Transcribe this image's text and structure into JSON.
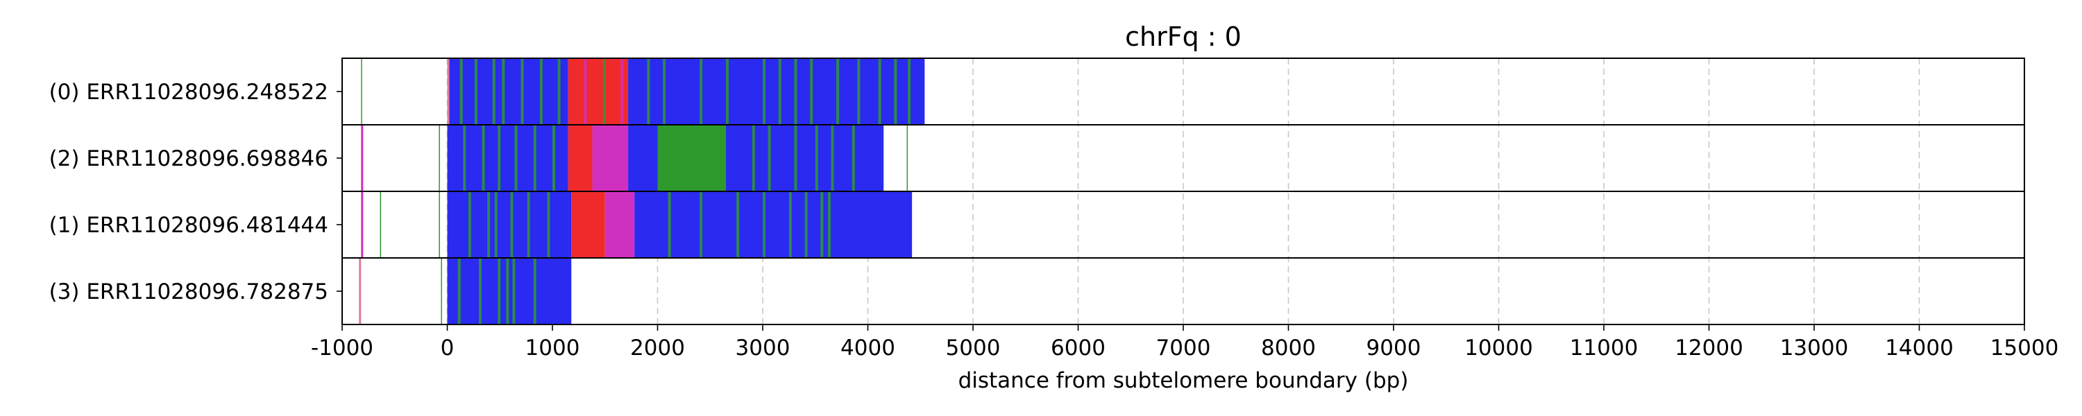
{
  "chart_data": {
    "type": "bar",
    "orientation": "horizontal-tracks",
    "title": "chrFq : 0",
    "xlabel": "distance from subtelomere boundary (bp)",
    "ylabel": "",
    "xlim": [
      -1000,
      15000
    ],
    "xticks": [
      -1000,
      0,
      1000,
      2000,
      3000,
      4000,
      5000,
      6000,
      7000,
      8000,
      9000,
      10000,
      11000,
      12000,
      13000,
      14000,
      15000
    ],
    "grid": "vertical-dashed",
    "colors": {
      "blue": "#2a2af0",
      "red": "#f02a2a",
      "green": "#2e9a2e",
      "magenta": "#d030c0",
      "pink": "#e07a9a",
      "grid": "#c8c8c8"
    },
    "rows": [
      {
        "label": "(0) ERR11028096.248522",
        "segments": [
          {
            "start": -820,
            "end": -810,
            "color": "green"
          },
          {
            "start": 0,
            "end": 20,
            "color": "pink"
          },
          {
            "start": 20,
            "end": 1150,
            "color": "blue"
          },
          {
            "start": 1150,
            "end": 1720,
            "color": "red"
          },
          {
            "start": 1720,
            "end": 4540,
            "color": "blue"
          }
        ],
        "accents": [
          {
            "x": 120,
            "color": "green"
          },
          {
            "x": 260,
            "color": "green"
          },
          {
            "x": 430,
            "color": "green"
          },
          {
            "x": 520,
            "color": "green"
          },
          {
            "x": 700,
            "color": "green"
          },
          {
            "x": 880,
            "color": "green"
          },
          {
            "x": 1050,
            "color": "green"
          },
          {
            "x": 1300,
            "color": "magenta"
          },
          {
            "x": 1480,
            "color": "green"
          },
          {
            "x": 1650,
            "color": "magenta"
          },
          {
            "x": 1900,
            "color": "green"
          },
          {
            "x": 2050,
            "color": "green"
          },
          {
            "x": 2400,
            "color": "green"
          },
          {
            "x": 2650,
            "color": "green"
          },
          {
            "x": 3000,
            "color": "green"
          },
          {
            "x": 3150,
            "color": "green"
          },
          {
            "x": 3300,
            "color": "green"
          },
          {
            "x": 3450,
            "color": "green"
          },
          {
            "x": 3700,
            "color": "green"
          },
          {
            "x": 3900,
            "color": "green"
          },
          {
            "x": 4100,
            "color": "green"
          },
          {
            "x": 4250,
            "color": "green"
          },
          {
            "x": 4380,
            "color": "green"
          }
        ]
      },
      {
        "label": "(2) ERR11028096.698846",
        "segments": [
          {
            "start": -820,
            "end": -800,
            "color": "magenta"
          },
          {
            "start": -80,
            "end": -70,
            "color": "green"
          },
          {
            "start": 0,
            "end": 1150,
            "color": "blue"
          },
          {
            "start": 1150,
            "end": 1380,
            "color": "red"
          },
          {
            "start": 1380,
            "end": 1720,
            "color": "magenta"
          },
          {
            "start": 1720,
            "end": 2000,
            "color": "blue"
          },
          {
            "start": 2000,
            "end": 2650,
            "color": "green"
          },
          {
            "start": 2650,
            "end": 4150,
            "color": "blue"
          },
          {
            "start": 4370,
            "end": 4380,
            "color": "green"
          }
        ],
        "accents": [
          {
            "x": 150,
            "color": "green"
          },
          {
            "x": 330,
            "color": "green"
          },
          {
            "x": 480,
            "color": "green"
          },
          {
            "x": 640,
            "color": "green"
          },
          {
            "x": 820,
            "color": "green"
          },
          {
            "x": 1000,
            "color": "green"
          },
          {
            "x": 2900,
            "color": "green"
          },
          {
            "x": 3050,
            "color": "green"
          },
          {
            "x": 3300,
            "color": "green"
          },
          {
            "x": 3500,
            "color": "green"
          },
          {
            "x": 3650,
            "color": "green"
          },
          {
            "x": 3850,
            "color": "green"
          }
        ]
      },
      {
        "label": "(1) ERR11028096.481444",
        "segments": [
          {
            "start": -820,
            "end": -800,
            "color": "magenta"
          },
          {
            "start": -640,
            "end": -630,
            "color": "green"
          },
          {
            "start": -80,
            "end": -70,
            "color": "green"
          },
          {
            "start": 0,
            "end": 1180,
            "color": "blue"
          },
          {
            "start": 1180,
            "end": 1500,
            "color": "red"
          },
          {
            "start": 1500,
            "end": 1780,
            "color": "magenta"
          },
          {
            "start": 1780,
            "end": 3650,
            "color": "blue"
          },
          {
            "start": 3650,
            "end": 4420,
            "color": "blue"
          }
        ],
        "accents": [
          {
            "x": 200,
            "color": "green"
          },
          {
            "x": 380,
            "color": "green"
          },
          {
            "x": 450,
            "color": "green"
          },
          {
            "x": 600,
            "color": "green"
          },
          {
            "x": 760,
            "color": "green"
          },
          {
            "x": 950,
            "color": "green"
          },
          {
            "x": 2100,
            "color": "green"
          },
          {
            "x": 2400,
            "color": "green"
          },
          {
            "x": 2750,
            "color": "green"
          },
          {
            "x": 3000,
            "color": "green"
          },
          {
            "x": 3250,
            "color": "green"
          },
          {
            "x": 3400,
            "color": "green"
          },
          {
            "x": 3550,
            "color": "green"
          },
          {
            "x": 3620,
            "color": "green"
          }
        ]
      },
      {
        "label": "(3) ERR11028096.782875",
        "segments": [
          {
            "start": -840,
            "end": -820,
            "color": "pink"
          },
          {
            "start": -60,
            "end": -50,
            "color": "green"
          },
          {
            "start": 0,
            "end": 1180,
            "color": "blue"
          }
        ],
        "accents": [
          {
            "x": 100,
            "color": "green"
          },
          {
            "x": 300,
            "color": "green"
          },
          {
            "x": 480,
            "color": "green"
          },
          {
            "x": 560,
            "color": "green"
          },
          {
            "x": 620,
            "color": "green"
          },
          {
            "x": 820,
            "color": "green"
          }
        ]
      }
    ]
  }
}
